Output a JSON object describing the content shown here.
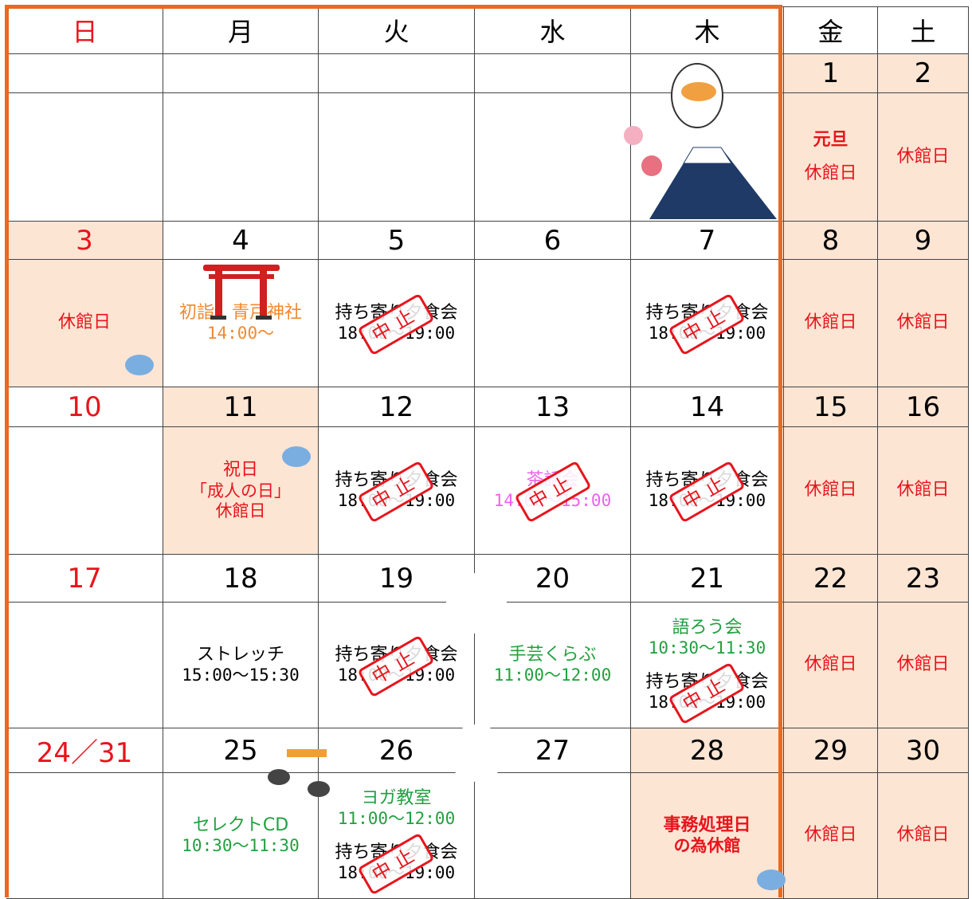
{
  "header_days": [
    "日",
    "月",
    "火",
    "水",
    "木",
    "金",
    "土"
  ],
  "header_colors": [
    "#e8141c",
    "#000000",
    "#000000",
    "#000000",
    "#000000",
    "#000000",
    "#000000"
  ],
  "weeks": [
    {
      "dates": [
        null,
        null,
        null,
        null,
        null,
        "1",
        "2"
      ],
      "date_colors": [
        "#000",
        "#000",
        "#000",
        "#000",
        "#000",
        "#000",
        "#000"
      ],
      "shaded_dates": [
        5,
        6
      ],
      "shaded_cells": [
        5,
        6
      ],
      "events": [
        [],
        [],
        [],
        [],
        [],
        [
          {
            "lines": [
              "元旦"
            ],
            "color": "#e8141c",
            "bold": true
          },
          {
            "lines": [
              "休館日"
            ],
            "color": "#e8141c"
          }
        ],
        [
          {
            "lines": [
              "休館日"
            ],
            "color": "#e8141c"
          }
        ]
      ]
    },
    {
      "dates": [
        "3",
        "4",
        "5",
        "6",
        "7",
        "8",
        "9"
      ],
      "date_colors": [
        "#e8141c",
        "#000",
        "#000",
        "#000",
        "#000",
        "#000",
        "#000"
      ],
      "shaded_dates": [
        0,
        5,
        6
      ],
      "shaded_cells": [
        0,
        5,
        6
      ],
      "events": [
        [
          {
            "lines": [
              "休館日"
            ],
            "color": "#e8141c"
          }
        ],
        [
          {
            "lines": [
              "初詣　青戸神社",
              "14:00～"
            ],
            "color": "#f08a30"
          }
        ],
        [
          {
            "lines": [
              "持ち寄り夕食会",
              "18:00～19:00"
            ],
            "color": "#000",
            "stamp": "中止"
          }
        ],
        [],
        [
          {
            "lines": [
              "持ち寄り夕食会",
              "18:00～19:00"
            ],
            "color": "#000",
            "stamp": "中止"
          }
        ],
        [
          {
            "lines": [
              "休館日"
            ],
            "color": "#e8141c"
          }
        ],
        [
          {
            "lines": [
              "休館日"
            ],
            "color": "#e8141c"
          }
        ]
      ]
    },
    {
      "dates": [
        "10",
        "11",
        "12",
        "13",
        "14",
        "15",
        "16"
      ],
      "date_colors": [
        "#e8141c",
        "#000",
        "#000",
        "#000",
        "#000",
        "#000",
        "#000"
      ],
      "shaded_dates": [
        1,
        5,
        6
      ],
      "shaded_cells": [
        1,
        5,
        6
      ],
      "events": [
        [],
        [
          {
            "lines": [
              "祝日",
              "「成人の日」",
              "休館日"
            ],
            "color": "#e8141c"
          }
        ],
        [
          {
            "lines": [
              "持ち寄り夕食会",
              "18:00～19:00"
            ],
            "color": "#000",
            "stamp": "中止"
          }
        ],
        [
          {
            "lines": [
              "茶話会",
              "14:00～15:00"
            ],
            "color": "#f060f0",
            "stamp": "中止"
          }
        ],
        [
          {
            "lines": [
              "持ち寄り夕食会",
              "18:00～19:00"
            ],
            "color": "#000",
            "stamp": "中止"
          }
        ],
        [
          {
            "lines": [
              "休館日"
            ],
            "color": "#e8141c"
          }
        ],
        [
          {
            "lines": [
              "休館日"
            ],
            "color": "#e8141c"
          }
        ]
      ]
    },
    {
      "dates": [
        "17",
        "18",
        "19",
        "20",
        "21",
        "22",
        "23"
      ],
      "date_colors": [
        "#e8141c",
        "#000",
        "#000",
        "#000",
        "#000",
        "#000",
        "#000"
      ],
      "shaded_dates": [
        5,
        6
      ],
      "shaded_cells": [
        5,
        6
      ],
      "events": [
        [],
        [
          {
            "lines": [
              "ストレッチ",
              "15:00～15:30"
            ],
            "color": "#000"
          }
        ],
        [
          {
            "lines": [
              "持ち寄り夕食会",
              "18:00～19:00"
            ],
            "color": "#000",
            "stamp": "中止"
          }
        ],
        [
          {
            "lines": [
              "手芸くらぶ",
              "11:00～12:00"
            ],
            "color": "#22a040"
          }
        ],
        [
          {
            "lines": [
              "語ろう会",
              "10:30～11:30"
            ],
            "color": "#22a040"
          },
          {
            "lines": [
              "持ち寄り夕食会",
              "18:00～19:00"
            ],
            "color": "#000",
            "stamp": "中止"
          }
        ],
        [
          {
            "lines": [
              "休館日"
            ],
            "color": "#e8141c"
          }
        ],
        [
          {
            "lines": [
              "休館日"
            ],
            "color": "#e8141c"
          }
        ]
      ]
    },
    {
      "dates": [
        "24／31",
        "25",
        "26",
        "27",
        "28",
        "29",
        "30"
      ],
      "date_colors": [
        "#e8141c",
        "#000",
        "#000",
        "#000",
        "#000",
        "#000",
        "#000"
      ],
      "shaded_dates": [
        4,
        5,
        6
      ],
      "shaded_cells": [
        4,
        5,
        6
      ],
      "events": [
        [],
        [
          {
            "lines": [
              "セレクトCD",
              "10:30～11:30"
            ],
            "color": "#22a040"
          }
        ],
        [
          {
            "lines": [
              "ヨガ教室",
              "11:00～12:00"
            ],
            "color": "#22a040"
          },
          {
            "lines": [
              "持ち寄り夕食会",
              "18:00～19:00"
            ],
            "color": "#000",
            "stamp": "中止"
          }
        ],
        [],
        [
          {
            "lines": [
              "事務処理日",
              "の為休館"
            ],
            "color": "#e8141c",
            "bold": true
          }
        ],
        [
          {
            "lines": [
              "休館日"
            ],
            "color": "#e8141c"
          }
        ],
        [
          {
            "lines": [
              "休館日"
            ],
            "color": "#e8141c"
          }
        ]
      ]
    }
  ]
}
